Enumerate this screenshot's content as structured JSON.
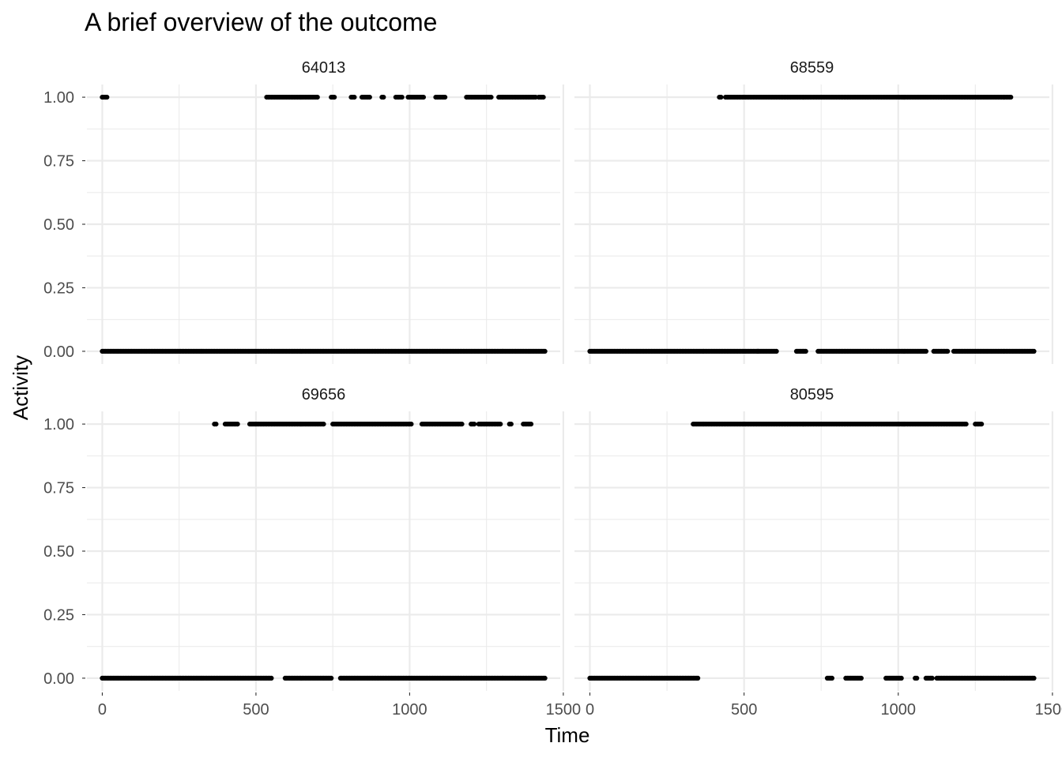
{
  "chart_data": {
    "type": "scatter",
    "title": "A brief overview of the outcome",
    "xlabel": "Time",
    "ylabel": "Activity",
    "xlim": [
      -50,
      1490
    ],
    "ylim": [
      -0.05,
      1.05
    ],
    "x_ticks": [
      0,
      500,
      1000,
      1500
    ],
    "x_tick_labels": [
      "0",
      "500",
      "1000",
      "1500"
    ],
    "y_ticks": [
      0,
      0.25,
      0.5,
      0.75,
      1
    ],
    "y_tick_labels": [
      "0.00",
      "0.25",
      "0.50",
      "0.75",
      "1.00"
    ],
    "grid": true,
    "point_color": "#000000",
    "panels": [
      {
        "id": "64013",
        "ones": [
          [
            0,
            15
          ],
          [
            535,
            700
          ],
          [
            745,
            755
          ],
          [
            810,
            820
          ],
          [
            845,
            870
          ],
          [
            910,
            915
          ],
          [
            955,
            975
          ],
          [
            995,
            1045
          ],
          [
            1085,
            1115
          ],
          [
            1185,
            1265
          ],
          [
            1290,
            1410
          ],
          [
            1420,
            1435
          ]
        ],
        "zeros": [
          [
            0,
            1440
          ]
        ]
      },
      {
        "id": "68559",
        "ones": [
          [
            420,
            425
          ],
          [
            440,
            1365
          ]
        ],
        "zeros": [
          [
            0,
            545
          ],
          [
            545,
            605
          ],
          [
            670,
            700
          ],
          [
            740,
            1090
          ],
          [
            1115,
            1160
          ],
          [
            1180,
            1440
          ]
        ]
      },
      {
        "id": "69656",
        "ones": [
          [
            365,
            370
          ],
          [
            400,
            440
          ],
          [
            480,
            720
          ],
          [
            750,
            1005
          ],
          [
            1040,
            1170
          ],
          [
            1200,
            1210
          ],
          [
            1225,
            1295
          ],
          [
            1325,
            1330
          ],
          [
            1370,
            1395
          ]
        ],
        "zeros": [
          [
            0,
            550
          ],
          [
            595,
            745
          ],
          [
            775,
            1440
          ]
        ]
      },
      {
        "id": "80595",
        "ones": [
          [
            335,
            1220
          ],
          [
            1250,
            1270
          ]
        ],
        "zeros": [
          [
            0,
            350
          ],
          [
            770,
            785
          ],
          [
            830,
            880
          ],
          [
            960,
            1010
          ],
          [
            1055,
            1060
          ],
          [
            1090,
            1110
          ],
          [
            1125,
            1440
          ]
        ]
      }
    ]
  }
}
